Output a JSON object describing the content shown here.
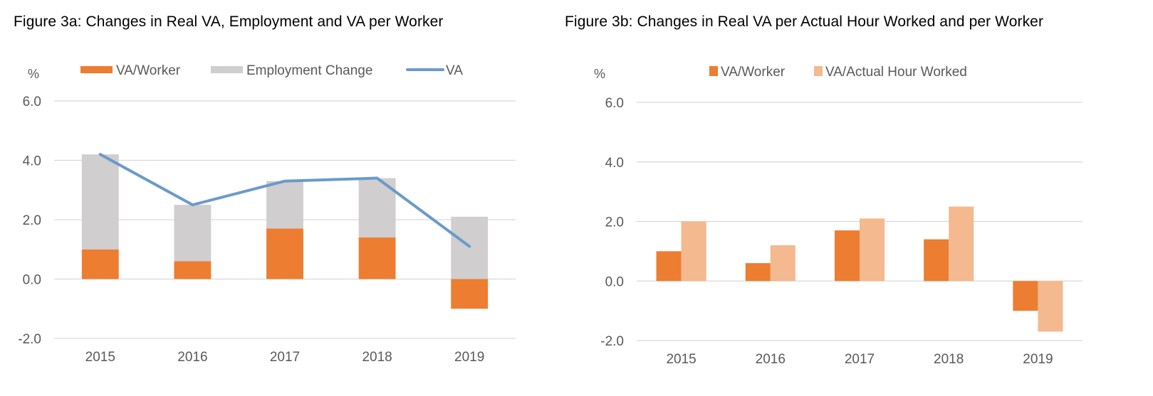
{
  "chart_data": [
    {
      "type": "bar",
      "stacked": true,
      "title": "Figure 3a: Changes in Real VA, Employment and VA per Worker",
      "ylabel": "%",
      "categories": [
        "2015",
        "2016",
        "2017",
        "2018",
        "2019"
      ],
      "ylim": [
        -2.0,
        6.0
      ],
      "yticks": [
        "6.0",
        "4.0",
        "2.0",
        "0.0",
        "-2.0"
      ],
      "grid": true,
      "legend_position": "top",
      "series": [
        {
          "name": "VA/Worker",
          "kind": "bar",
          "color": "#ED7D31",
          "values": [
            1.0,
            0.6,
            1.7,
            1.4,
            -1.0
          ]
        },
        {
          "name": "Employment Change",
          "kind": "bar",
          "color": "#D0CECE",
          "values": [
            3.2,
            1.9,
            1.6,
            2.0,
            2.1
          ]
        },
        {
          "name": "VA",
          "kind": "line",
          "color": "#6A9ACB",
          "values": [
            4.2,
            2.5,
            3.3,
            3.4,
            1.1
          ]
        }
      ]
    },
    {
      "type": "bar",
      "title": "Figure 3b: Changes in Real VA per Actual Hour Worked and per Worker",
      "ylabel": "%",
      "categories": [
        "2015",
        "2016",
        "2017",
        "2018",
        "2019"
      ],
      "ylim": [
        -2.0,
        6.0
      ],
      "yticks": [
        "6.0",
        "4.0",
        "2.0",
        "0.0",
        "-2.0"
      ],
      "grid": true,
      "legend_position": "top",
      "series": [
        {
          "name": "VA/Worker",
          "kind": "bar",
          "color": "#ED7D31",
          "values": [
            1.0,
            0.6,
            1.7,
            1.4,
            -1.0
          ]
        },
        {
          "name": "VA/Actual Hour Worked",
          "kind": "bar",
          "color": "#F4B98E",
          "values": [
            2.0,
            1.2,
            2.1,
            2.5,
            -1.7
          ]
        }
      ]
    }
  ]
}
